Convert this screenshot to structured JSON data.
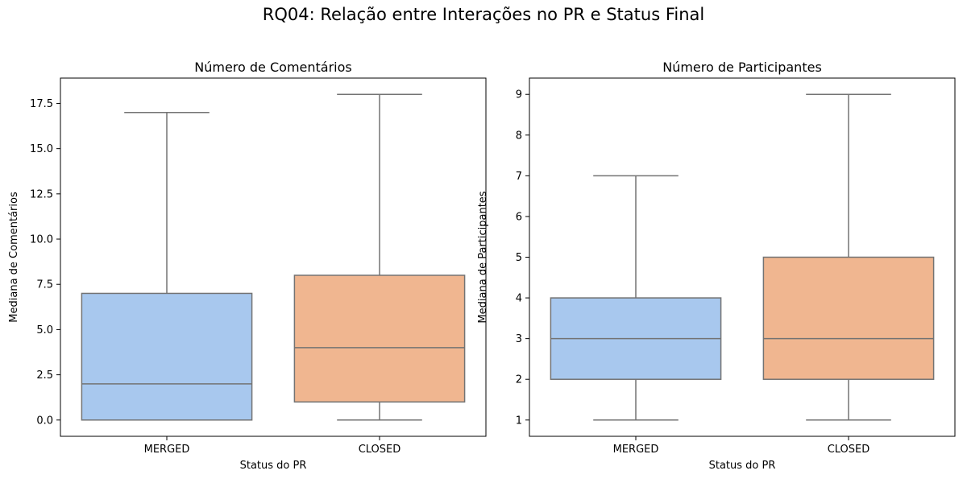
{
  "figure": {
    "suptitle": "RQ04: Relação entre Interações no PR e Status Final"
  },
  "chart_data": [
    {
      "type": "box",
      "title": "Número de Comentários",
      "xlabel": "Status do PR",
      "ylabel": "Mediana de Comentários",
      "categories": [
        "MERGED",
        "CLOSED"
      ],
      "colors": [
        "#a8c8ee",
        "#f0b690"
      ],
      "ylim": [
        -0.9,
        18.9
      ],
      "yticks": [
        0.0,
        2.5,
        5.0,
        7.5,
        10.0,
        12.5,
        15.0,
        17.5
      ],
      "ytick_labels": [
        "0.0",
        "2.5",
        "5.0",
        "7.5",
        "10.0",
        "12.5",
        "15.0",
        "17.5"
      ],
      "boxes": [
        {
          "category": "MERGED",
          "whisker_low": 0,
          "q1": 0,
          "median": 2,
          "q3": 7,
          "whisker_high": 17
        },
        {
          "category": "CLOSED",
          "whisker_low": 0,
          "q1": 1,
          "median": 4,
          "q3": 8,
          "whisker_high": 18
        }
      ],
      "grid": false
    },
    {
      "type": "box",
      "title": "Número de Participantes",
      "xlabel": "Status do PR",
      "ylabel": "Mediana de Participantes",
      "categories": [
        "MERGED",
        "CLOSED"
      ],
      "colors": [
        "#a8c8ee",
        "#f0b690"
      ],
      "ylim": [
        0.6,
        9.4
      ],
      "yticks": [
        1,
        2,
        3,
        4,
        5,
        6,
        7,
        8,
        9
      ],
      "ytick_labels": [
        "1",
        "2",
        "3",
        "4",
        "5",
        "6",
        "7",
        "8",
        "9"
      ],
      "boxes": [
        {
          "category": "MERGED",
          "whisker_low": 1,
          "q1": 2,
          "median": 3,
          "q3": 4,
          "whisker_high": 7
        },
        {
          "category": "CLOSED",
          "whisker_low": 1,
          "q1": 2,
          "median": 3,
          "q3": 5,
          "whisker_high": 9
        }
      ],
      "grid": false
    }
  ]
}
